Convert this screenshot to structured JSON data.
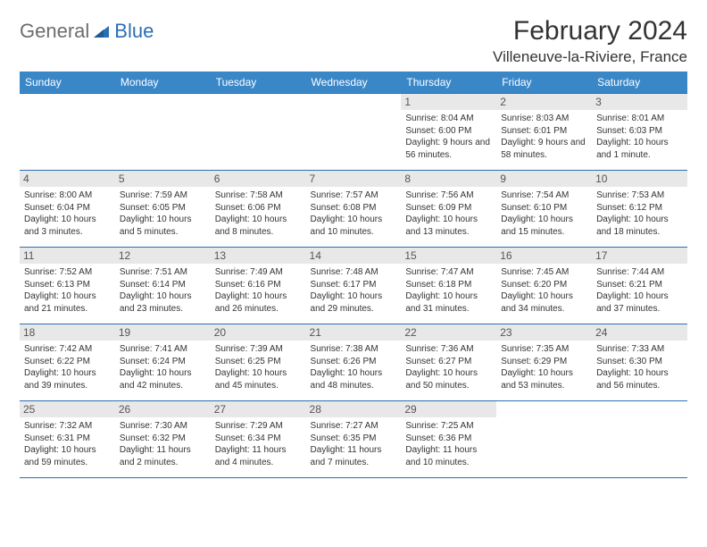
{
  "logo": {
    "text_general": "General",
    "text_blue": "Blue"
  },
  "title": "February 2024",
  "location": "Villeneuve-la-Riviere, France",
  "colors": {
    "header_bg": "#3a87c8",
    "header_text": "#ffffff",
    "border": "#2b6fb3",
    "daynum_bg": "#e8e8e8",
    "body_text": "#333333",
    "logo_gray": "#6d6d6d",
    "logo_blue": "#2b6fb3"
  },
  "day_headers": [
    "Sunday",
    "Monday",
    "Tuesday",
    "Wednesday",
    "Thursday",
    "Friday",
    "Saturday"
  ],
  "weeks": [
    [
      null,
      null,
      null,
      null,
      {
        "num": "1",
        "sunrise": "8:04 AM",
        "sunset": "6:00 PM",
        "daylight": "9 hours and 56 minutes."
      },
      {
        "num": "2",
        "sunrise": "8:03 AM",
        "sunset": "6:01 PM",
        "daylight": "9 hours and 58 minutes."
      },
      {
        "num": "3",
        "sunrise": "8:01 AM",
        "sunset": "6:03 PM",
        "daylight": "10 hours and 1 minute."
      }
    ],
    [
      {
        "num": "4",
        "sunrise": "8:00 AM",
        "sunset": "6:04 PM",
        "daylight": "10 hours and 3 minutes."
      },
      {
        "num": "5",
        "sunrise": "7:59 AM",
        "sunset": "6:05 PM",
        "daylight": "10 hours and 5 minutes."
      },
      {
        "num": "6",
        "sunrise": "7:58 AM",
        "sunset": "6:06 PM",
        "daylight": "10 hours and 8 minutes."
      },
      {
        "num": "7",
        "sunrise": "7:57 AM",
        "sunset": "6:08 PM",
        "daylight": "10 hours and 10 minutes."
      },
      {
        "num": "8",
        "sunrise": "7:56 AM",
        "sunset": "6:09 PM",
        "daylight": "10 hours and 13 minutes."
      },
      {
        "num": "9",
        "sunrise": "7:54 AM",
        "sunset": "6:10 PM",
        "daylight": "10 hours and 15 minutes."
      },
      {
        "num": "10",
        "sunrise": "7:53 AM",
        "sunset": "6:12 PM",
        "daylight": "10 hours and 18 minutes."
      }
    ],
    [
      {
        "num": "11",
        "sunrise": "7:52 AM",
        "sunset": "6:13 PM",
        "daylight": "10 hours and 21 minutes."
      },
      {
        "num": "12",
        "sunrise": "7:51 AM",
        "sunset": "6:14 PM",
        "daylight": "10 hours and 23 minutes."
      },
      {
        "num": "13",
        "sunrise": "7:49 AM",
        "sunset": "6:16 PM",
        "daylight": "10 hours and 26 minutes."
      },
      {
        "num": "14",
        "sunrise": "7:48 AM",
        "sunset": "6:17 PM",
        "daylight": "10 hours and 29 minutes."
      },
      {
        "num": "15",
        "sunrise": "7:47 AM",
        "sunset": "6:18 PM",
        "daylight": "10 hours and 31 minutes."
      },
      {
        "num": "16",
        "sunrise": "7:45 AM",
        "sunset": "6:20 PM",
        "daylight": "10 hours and 34 minutes."
      },
      {
        "num": "17",
        "sunrise": "7:44 AM",
        "sunset": "6:21 PM",
        "daylight": "10 hours and 37 minutes."
      }
    ],
    [
      {
        "num": "18",
        "sunrise": "7:42 AM",
        "sunset": "6:22 PM",
        "daylight": "10 hours and 39 minutes."
      },
      {
        "num": "19",
        "sunrise": "7:41 AM",
        "sunset": "6:24 PM",
        "daylight": "10 hours and 42 minutes."
      },
      {
        "num": "20",
        "sunrise": "7:39 AM",
        "sunset": "6:25 PM",
        "daylight": "10 hours and 45 minutes."
      },
      {
        "num": "21",
        "sunrise": "7:38 AM",
        "sunset": "6:26 PM",
        "daylight": "10 hours and 48 minutes."
      },
      {
        "num": "22",
        "sunrise": "7:36 AM",
        "sunset": "6:27 PM",
        "daylight": "10 hours and 50 minutes."
      },
      {
        "num": "23",
        "sunrise": "7:35 AM",
        "sunset": "6:29 PM",
        "daylight": "10 hours and 53 minutes."
      },
      {
        "num": "24",
        "sunrise": "7:33 AM",
        "sunset": "6:30 PM",
        "daylight": "10 hours and 56 minutes."
      }
    ],
    [
      {
        "num": "25",
        "sunrise": "7:32 AM",
        "sunset": "6:31 PM",
        "daylight": "10 hours and 59 minutes."
      },
      {
        "num": "26",
        "sunrise": "7:30 AM",
        "sunset": "6:32 PM",
        "daylight": "11 hours and 2 minutes."
      },
      {
        "num": "27",
        "sunrise": "7:29 AM",
        "sunset": "6:34 PM",
        "daylight": "11 hours and 4 minutes."
      },
      {
        "num": "28",
        "sunrise": "7:27 AM",
        "sunset": "6:35 PM",
        "daylight": "11 hours and 7 minutes."
      },
      {
        "num": "29",
        "sunrise": "7:25 AM",
        "sunset": "6:36 PM",
        "daylight": "11 hours and 10 minutes."
      },
      null,
      null
    ]
  ],
  "labels": {
    "sunrise": "Sunrise: ",
    "sunset": "Sunset: ",
    "daylight": "Daylight: "
  }
}
